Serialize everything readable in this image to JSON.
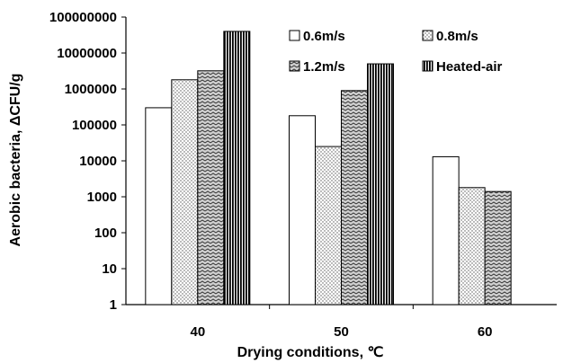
{
  "chart_data": {
    "type": "bar",
    "title": "",
    "xlabel": "Drying conditions, ℃",
    "ylabel": "Aerobic bacteria, ΔCFU/g",
    "yscale": "log",
    "ylim": [
      1,
      100000000
    ],
    "yticks": [
      "1",
      "10",
      "100",
      "1000",
      "10000",
      "100000",
      "1000000",
      "10000000",
      "100000000"
    ],
    "categories": [
      "40",
      "50",
      "60"
    ],
    "series": [
      {
        "name": "0.6m/s",
        "pattern": "white",
        "values": [
          300000,
          180000,
          13000
        ]
      },
      {
        "name": "0.8m/s",
        "pattern": "dots",
        "values": [
          1800000,
          25000,
          1800
        ]
      },
      {
        "name": "1.2m/s",
        "pattern": "zigzag",
        "values": [
          3200000,
          900000,
          1400
        ]
      },
      {
        "name": "Heated-air",
        "pattern": "vertical-stripes",
        "values": [
          40000000,
          5000000,
          null
        ]
      }
    ],
    "legend": "top-right",
    "grid": false
  }
}
